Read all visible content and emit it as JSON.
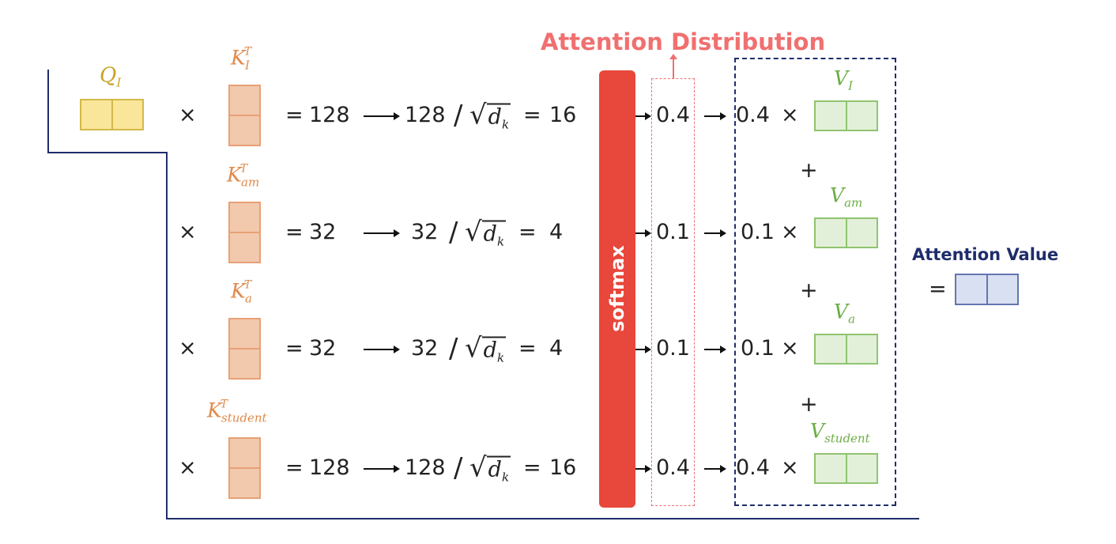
{
  "title": "Attention Distribution",
  "softmax_label": "softmax",
  "output": {
    "label": "Attention Value",
    "equals": "="
  },
  "query": {
    "symbol": "Q",
    "subscript": "I"
  },
  "operators": {
    "times": "×",
    "equals": "=",
    "plus": "+",
    "divide": "/",
    "sqrt_var": "d",
    "sqrt_sub": "k",
    "transpose": "T"
  },
  "rows": [
    {
      "key_sub": "I",
      "score": "128",
      "scaled_num": "128",
      "scaled": "16",
      "prob": "0.4",
      "weight": "0.4",
      "value_sub": "I"
    },
    {
      "key_sub": "am",
      "score": "32",
      "scaled_num": "32",
      "scaled": "4",
      "prob": "0.1",
      "weight": "0.1",
      "value_sub": "am"
    },
    {
      "key_sub": "a",
      "score": "32",
      "scaled_num": "32",
      "scaled": "4",
      "prob": "0.1",
      "weight": "0.1",
      "value_sub": "a"
    },
    {
      "key_sub": "student",
      "score": "128",
      "scaled_num": "128",
      "scaled": "16",
      "prob": "0.4",
      "weight": "0.4",
      "value_sub": "student"
    }
  ],
  "colors": {
    "query": "#f9e69a",
    "query_border": "#d4b94a",
    "key": "#f2c9ad",
    "key_border": "#e8a077",
    "value": "#e3f0d9",
    "value_border": "#8fc46f",
    "output": "#d9e0f2",
    "output_border": "#6475b0",
    "softmax": "#e8473b",
    "dist": "#f07070",
    "navy": "#1f2d6b"
  }
}
